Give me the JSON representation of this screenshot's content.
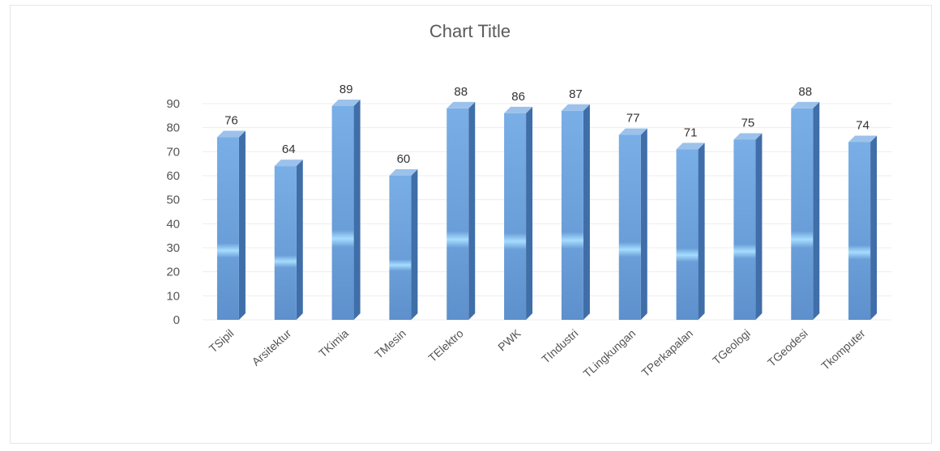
{
  "chart_data": {
    "type": "bar",
    "title": "Chart Title",
    "categories": [
      "TSipil",
      "Arsitektur",
      "TKimia",
      "TMesin",
      "TElektro",
      "PWK",
      "TIndustri",
      "TLingkungan",
      "TPerkapalan",
      "TGeologi",
      "TGeodesi",
      "Tkomputer"
    ],
    "values": [
      76,
      64,
      89,
      60,
      88,
      86,
      87,
      77,
      71,
      75,
      88,
      74
    ],
    "xlabel": "",
    "ylabel": "",
    "ylim": [
      0,
      90
    ],
    "yticks": [
      0,
      10,
      20,
      30,
      40,
      50,
      60,
      70,
      80,
      90
    ],
    "grid": true,
    "legend": "none",
    "colors": {
      "bar_front": "#6a9ed8",
      "bar_side": "#3f6ea8",
      "bar_top": "#9cc2ec",
      "highlight": "#9fd6ff"
    }
  }
}
